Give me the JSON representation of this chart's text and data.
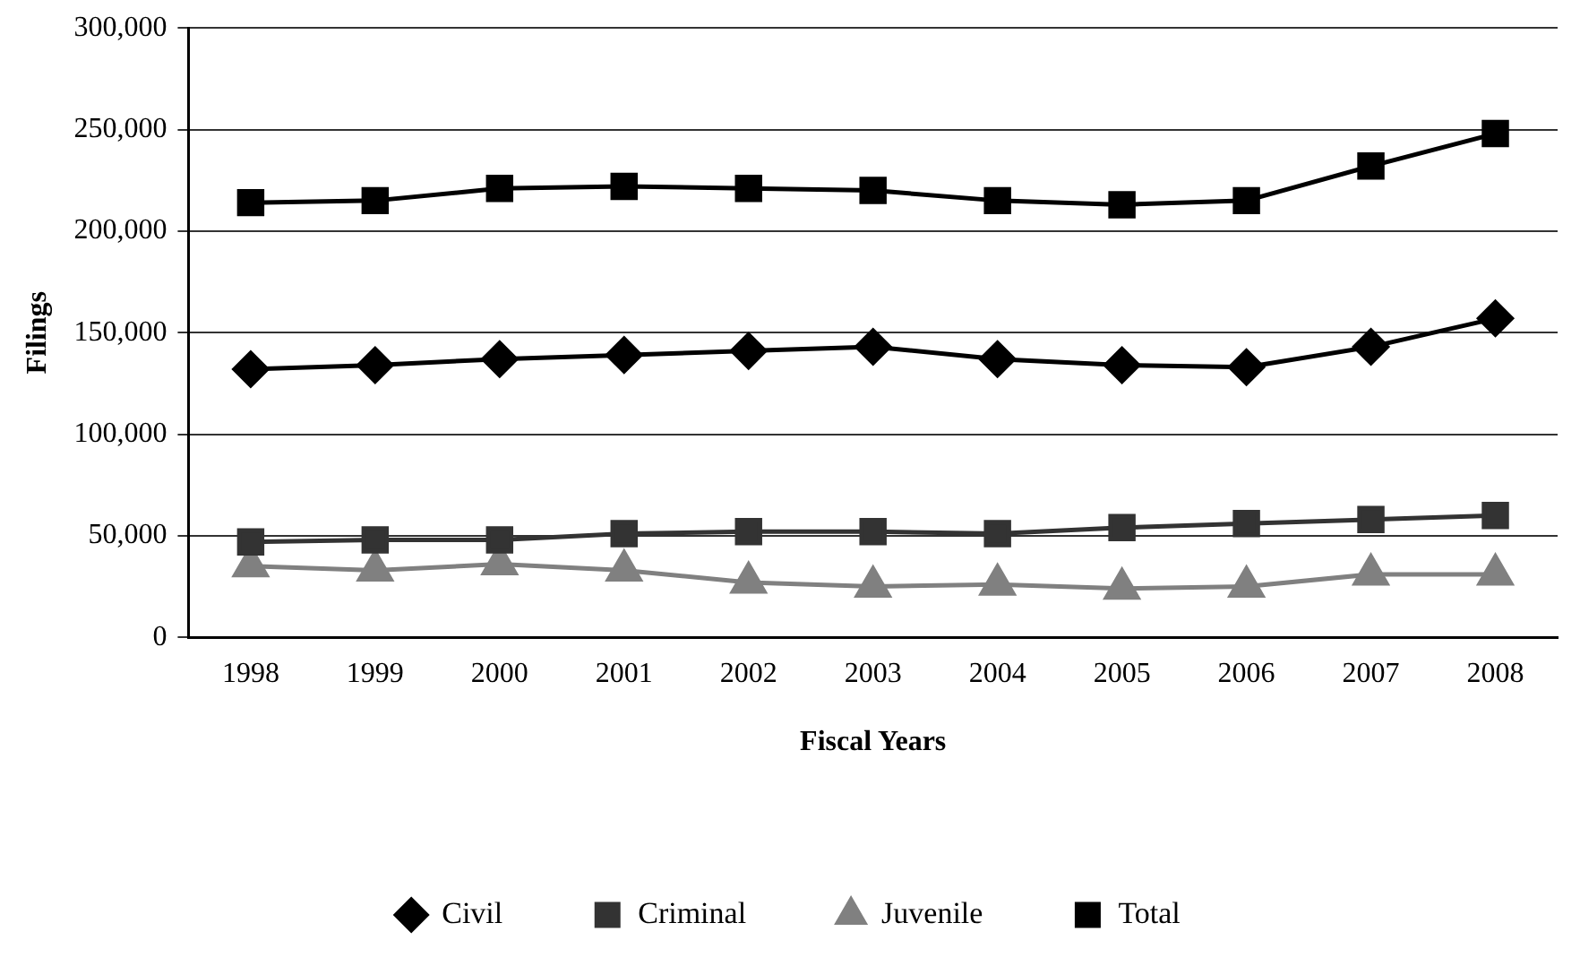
{
  "chart_data": {
    "type": "line",
    "xlabel": "Fiscal Years",
    "ylabel": "Filings",
    "categories": [
      "1998",
      "1999",
      "2000",
      "2001",
      "2002",
      "2003",
      "2004",
      "2005",
      "2006",
      "2007",
      "2008"
    ],
    "series": [
      {
        "name": "Civil",
        "color": "#000000",
        "marker": "diamond",
        "values": [
          132000,
          134000,
          137000,
          139000,
          141000,
          143000,
          137000,
          134000,
          133000,
          143000,
          157000
        ]
      },
      {
        "name": "Criminal",
        "color": "#333333",
        "marker": "square",
        "values": [
          47000,
          48000,
          48000,
          51000,
          52000,
          52000,
          51000,
          54000,
          56000,
          58000,
          60000
        ]
      },
      {
        "name": "Juvenile",
        "color": "#808080",
        "marker": "triangle",
        "values": [
          35000,
          33000,
          36000,
          33000,
          27000,
          25000,
          26000,
          24000,
          25000,
          31000,
          31000
        ]
      },
      {
        "name": "Total",
        "color": "#000000",
        "marker": "square",
        "values": [
          214000,
          215000,
          221000,
          222000,
          221000,
          220000,
          215000,
          213000,
          215000,
          232000,
          248000
        ]
      }
    ],
    "ylim": [
      0,
      300000
    ],
    "yticks": [
      {
        "value": 0,
        "label": "0"
      },
      {
        "value": 50000,
        "label": "50,000"
      },
      {
        "value": 100000,
        "label": "100,000"
      },
      {
        "value": 150000,
        "label": "150,000"
      },
      {
        "value": 200000,
        "label": "200,000"
      },
      {
        "value": 250000,
        "label": "250,000"
      },
      {
        "value": 300000,
        "label": "300,000"
      }
    ],
    "grid": "y",
    "legend": "bottom",
    "line_style": "solid"
  }
}
